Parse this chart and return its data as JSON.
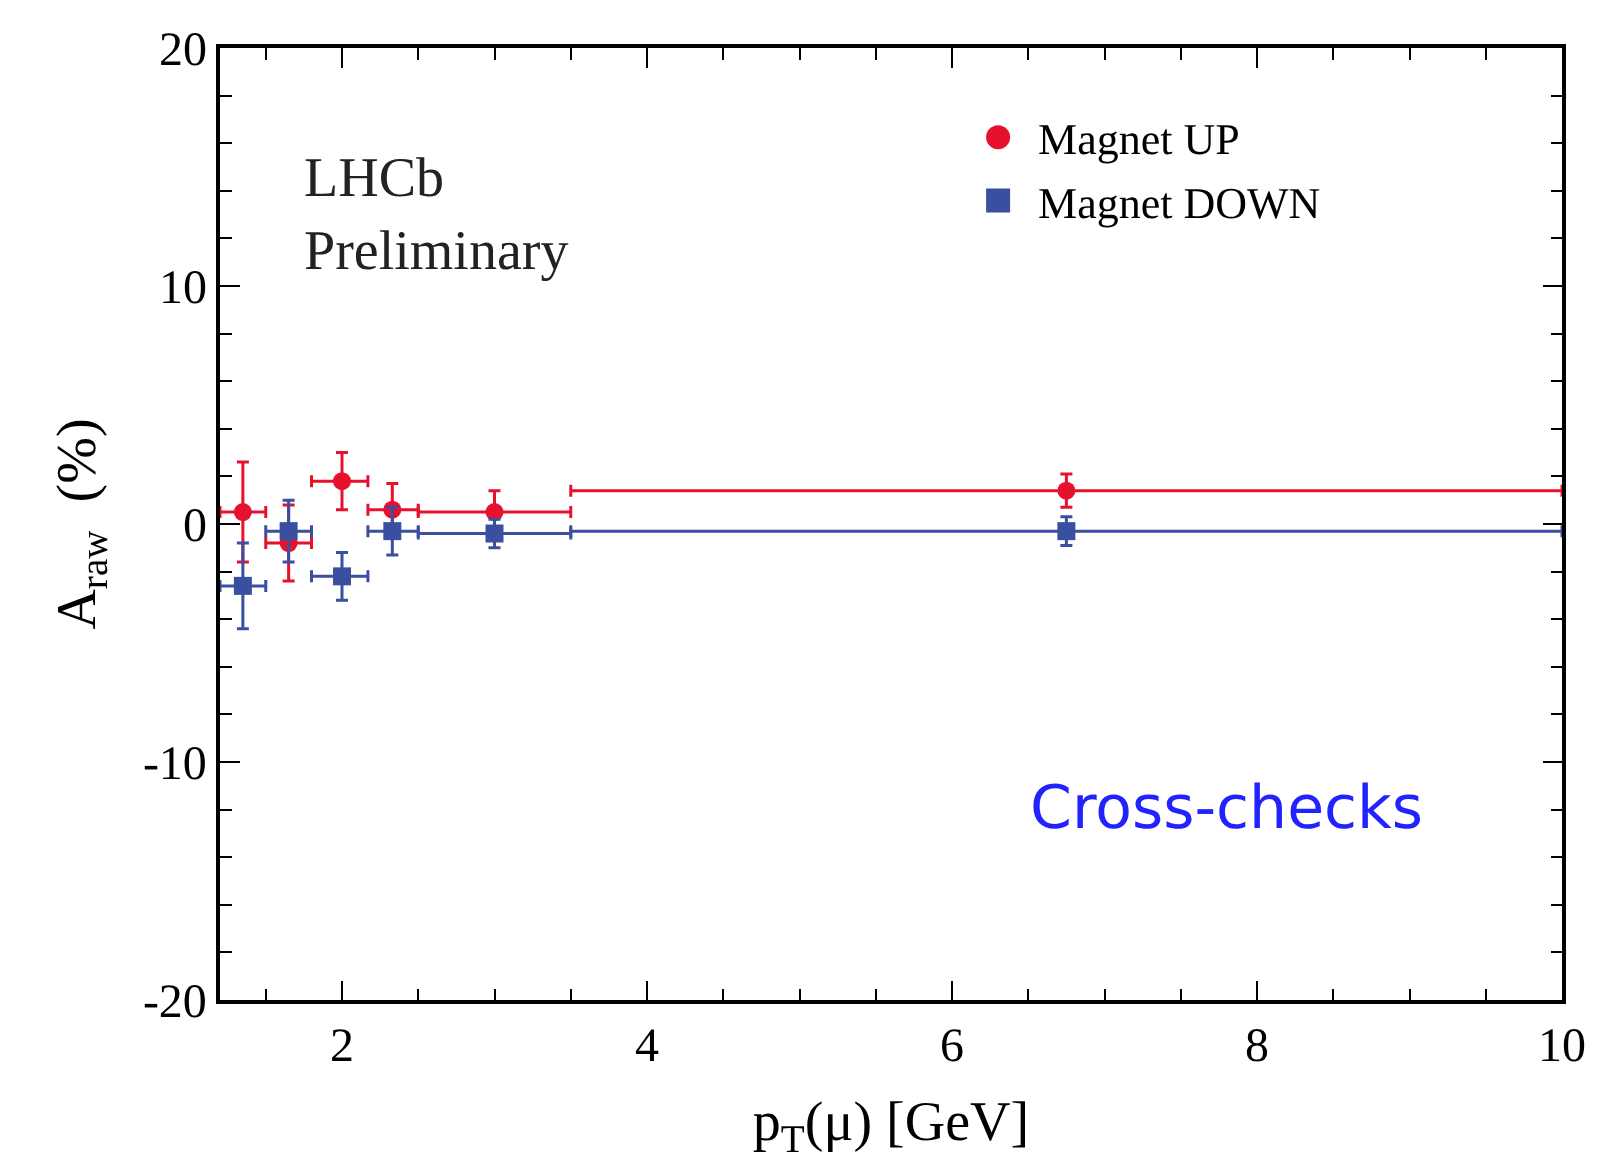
{
  "chart_data": {
    "type": "scatter",
    "xlabel": "p$_{T}$(μ) [GeV]",
    "ylabel": "A$_{raw}$  (%)",
    "xlim": [
      1.2,
      10
    ],
    "ylim": [
      -20,
      20
    ],
    "xticks": [
      2,
      4,
      6,
      8,
      10
    ],
    "yticks": [
      -20,
      -10,
      0,
      10,
      20
    ],
    "legend": "top right",
    "annotations": [
      "LHCb\nPreliminary",
      "Cross-checks"
    ],
    "series": [
      {
        "name": "Magnet UP",
        "color": "#e8112d",
        "marker": "circle",
        "x": [
          1.35,
          1.65,
          2.0,
          2.33,
          3.0,
          6.75
        ],
        "values": [
          0.5,
          -0.8,
          1.8,
          0.6,
          0.5,
          1.4
        ],
        "errors": [
          2.1,
          1.6,
          1.2,
          1.1,
          0.9,
          0.7
        ],
        "xerrors": [
          [
            1.2,
            1.5
          ],
          [
            1.5,
            1.8
          ],
          [
            1.8,
            2.17
          ],
          [
            2.17,
            2.5
          ],
          [
            2.5,
            3.5
          ],
          [
            3.5,
            10
          ]
        ]
      },
      {
        "name": "Magnet DOWN",
        "color": "#3b4fa0",
        "marker": "square",
        "x": [
          1.35,
          1.65,
          2.0,
          2.33,
          3.0,
          6.75
        ],
        "values": [
          -2.6,
          -0.3,
          -2.2,
          -0.3,
          -0.4,
          -0.3
        ],
        "errors": [
          1.8,
          1.3,
          1.0,
          1.0,
          0.6,
          0.6
        ],
        "xerrors": [
          [
            1.2,
            1.5
          ],
          [
            1.5,
            1.8
          ],
          [
            1.8,
            2.17
          ],
          [
            2.17,
            2.5
          ],
          [
            2.5,
            3.5
          ],
          [
            3.5,
            10
          ]
        ]
      }
    ]
  }
}
